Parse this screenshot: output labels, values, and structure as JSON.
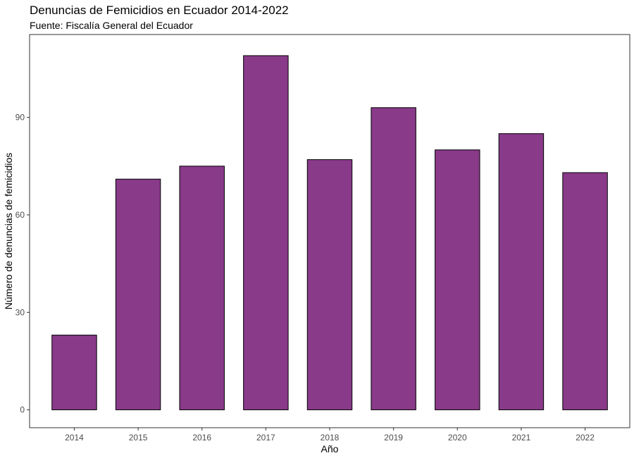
{
  "chart_data": {
    "type": "bar",
    "title": "Denuncias de Femicidios en Ecuador 2014-2022",
    "subtitle": "Fuente: Fiscalía General del Ecuador",
    "xlabel": "Año",
    "ylabel": "Número de denuncias de femicidios",
    "categories": [
      "2014",
      "2015",
      "2016",
      "2017",
      "2018",
      "2019",
      "2020",
      "2021",
      "2022"
    ],
    "values": [
      23,
      71,
      75,
      109,
      77,
      93,
      80,
      85,
      73
    ],
    "yticks": [
      0,
      30,
      60,
      90
    ],
    "ylim": [
      -5.5,
      115.5
    ],
    "grid": false,
    "legend": "none",
    "bar_color": "#893A89",
    "bar_outline": "#000000"
  }
}
